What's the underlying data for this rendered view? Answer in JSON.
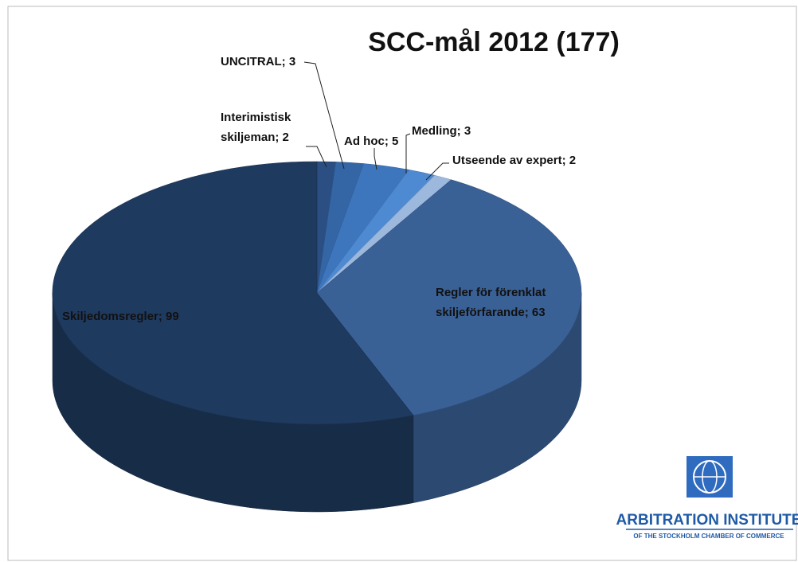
{
  "chart_data": {
    "type": "pie3d",
    "title": "SCC-mål 2012 (177)",
    "values": [
      2,
      3,
      5,
      3,
      2,
      63,
      99
    ],
    "value_labels": [
      [
        "Interimistisk",
        "skiljeman; 2"
      ],
      [
        "UNCITRAL; 3"
      ],
      [
        "Ad hoc; 5"
      ],
      [
        "Medling; 3"
      ],
      [
        "Utseende av expert; 2"
      ],
      [
        "Regler för förenklat",
        "skiljeförfarande; 63"
      ],
      [
        "Skiljedomsregler; 99"
      ]
    ],
    "colors": [
      "#2b4f82",
      "#3465a4",
      "#3e76bd",
      "#4e8ad2",
      "#9db8dd",
      "#3a6196",
      "#1f3a5f"
    ]
  },
  "logo": {
    "name": "ARBITRATION INSTITUTE",
    "subtitle": "OF THE STOCKHOLM CHAMBER OF COMMERCE"
  }
}
